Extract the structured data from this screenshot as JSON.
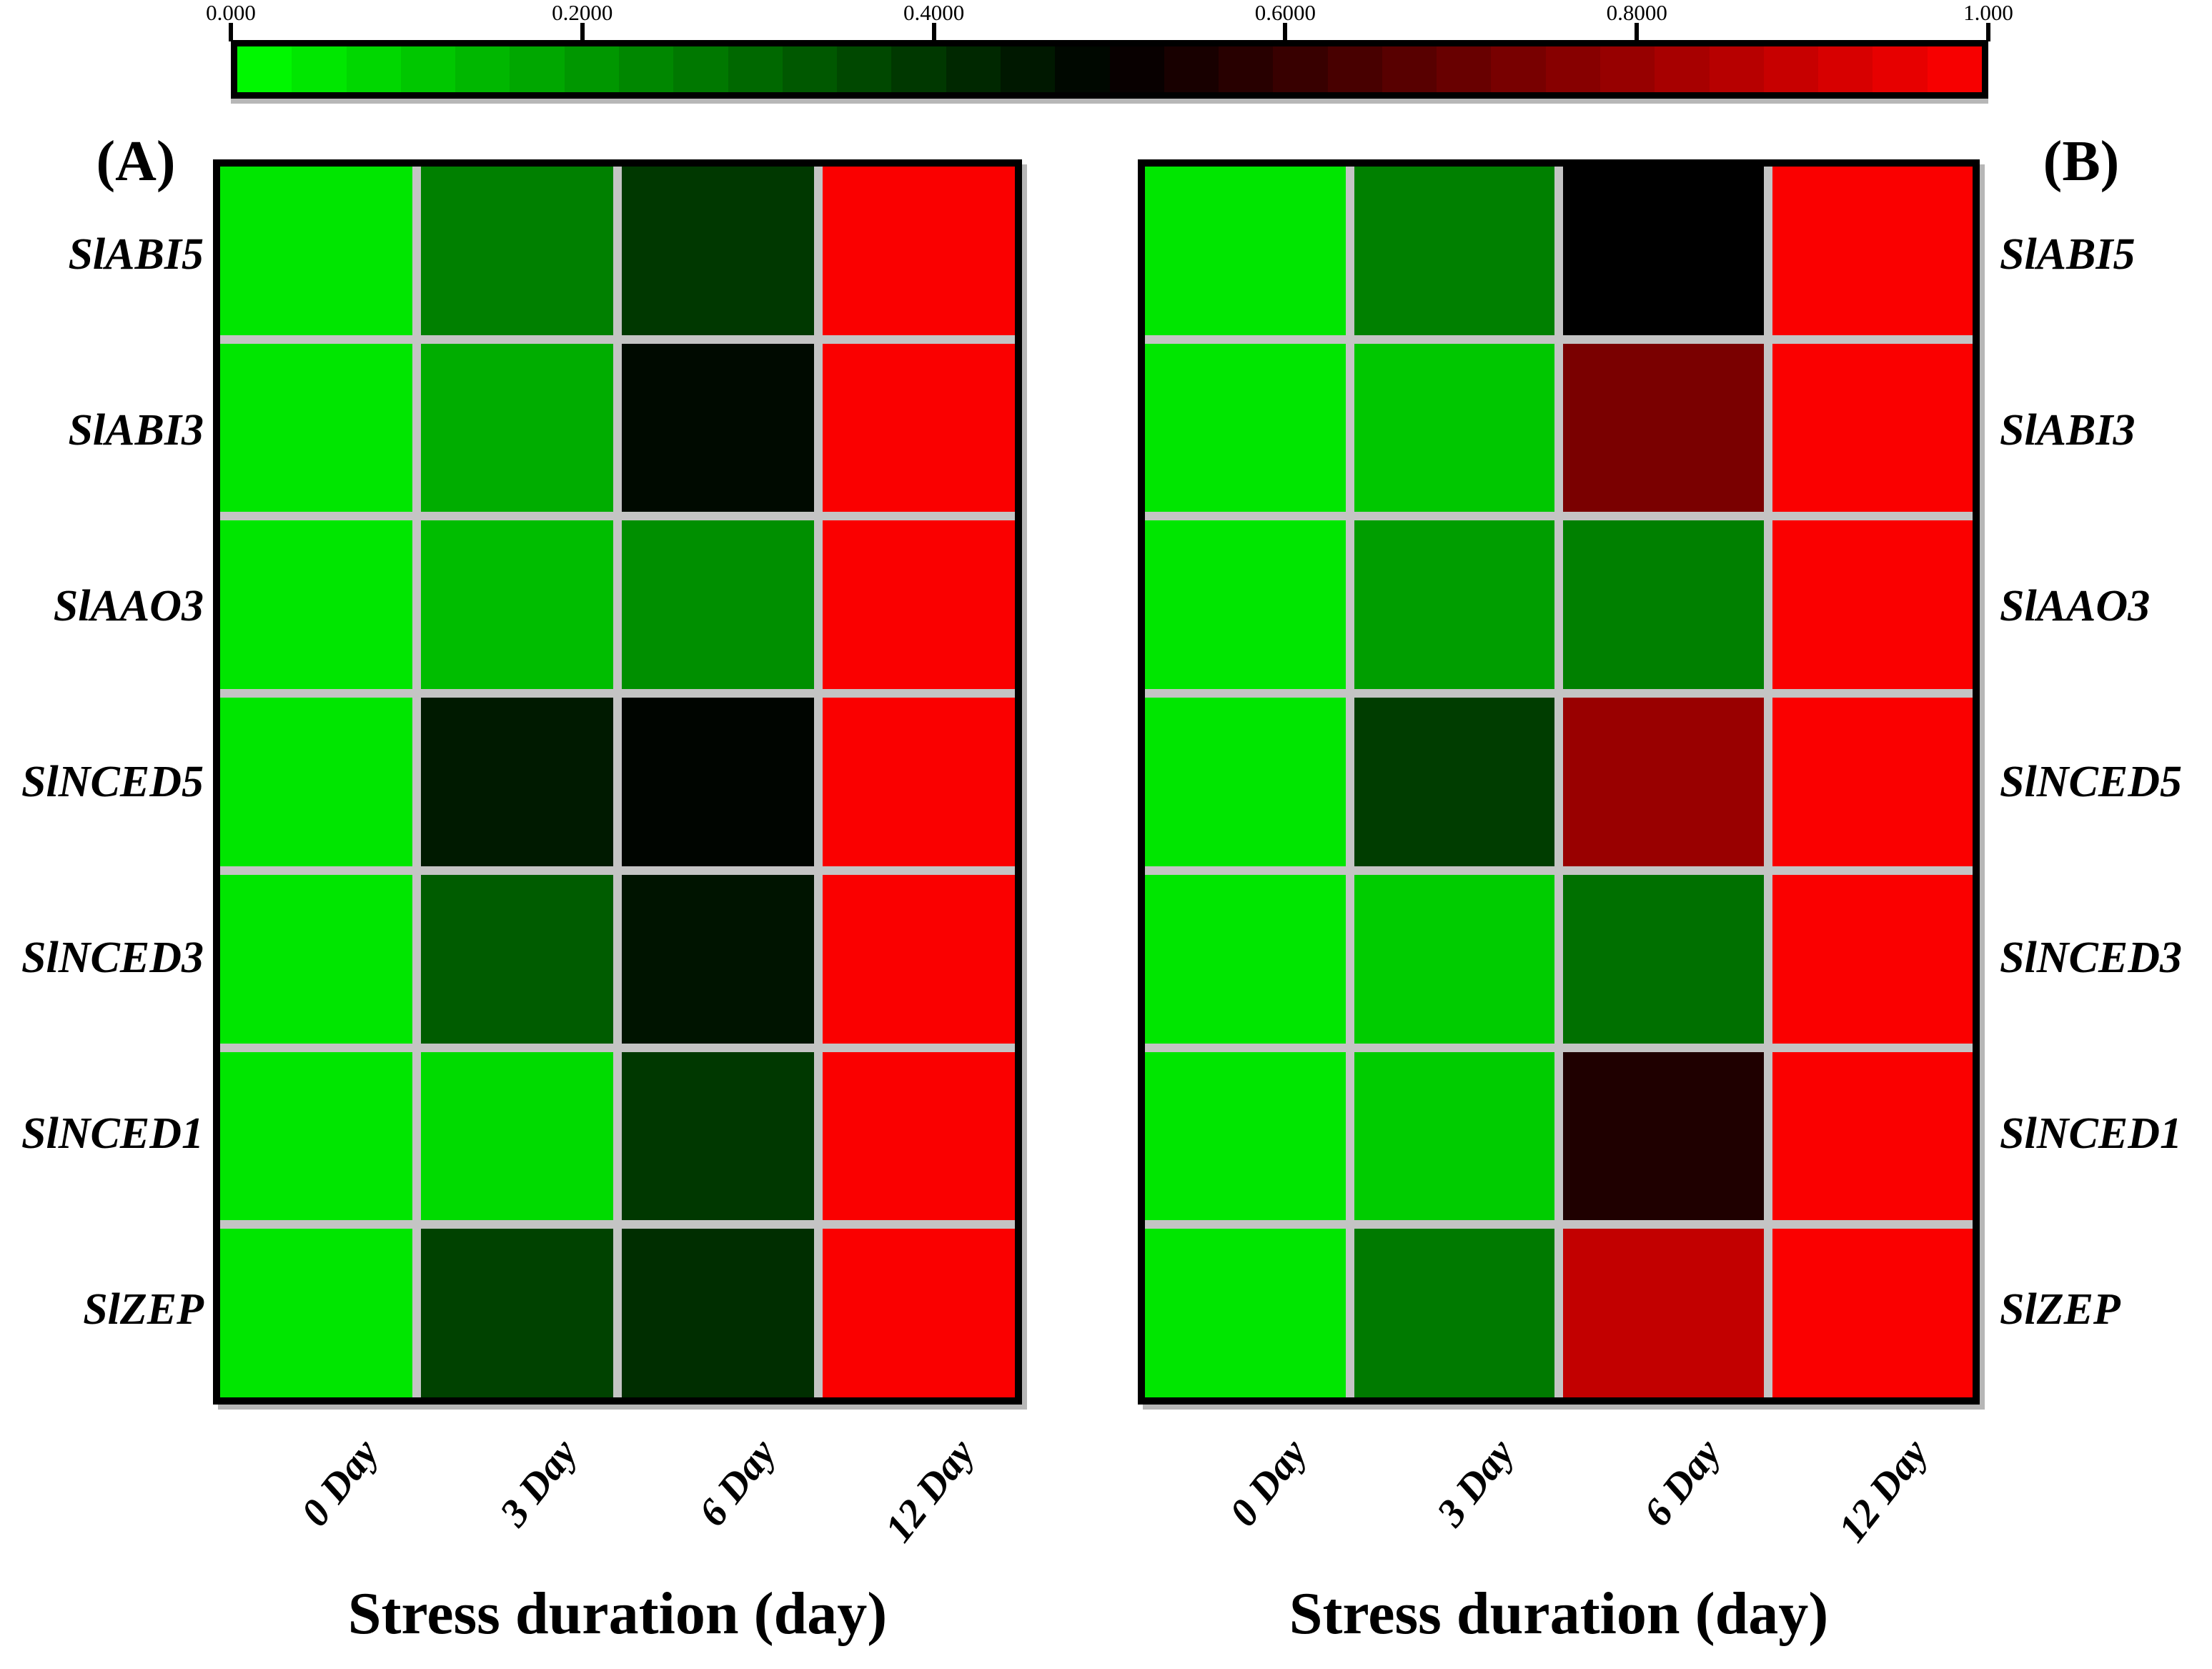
{
  "colorbar": {
    "tick_labels": [
      "0.000",
      "0.2000",
      "0.4000",
      "0.6000",
      "0.8000",
      "1.000"
    ],
    "tick_positions": [
      0,
      0.2,
      0.4,
      0.6,
      0.8,
      1.0
    ],
    "n_segments": 32
  },
  "chart_data": {
    "type": "heatmap",
    "colormap": {
      "low": "#00FF00",
      "mid": "#000000",
      "high": "#FF0000"
    },
    "value_range": [
      0,
      1
    ],
    "legend_position": "top",
    "cell_gap_color": "#c4c4c4",
    "panel_border_color": "#000000",
    "rows": [
      "SlABI5",
      "SlABI3",
      "SlAAO3",
      "SlNCED5",
      "SlNCED3",
      "SlNCED1",
      "SlZEP"
    ],
    "columns": [
      "0 Day",
      "3 Day",
      "6 Day",
      "12 Day"
    ],
    "panels": [
      {
        "label": "(A)",
        "xlabel": "Stress duration (day)",
        "row_label_side": "left",
        "values": [
          [
            0.05,
            0.25,
            0.39,
            0.99
          ],
          [
            0.05,
            0.16,
            0.48,
            0.99
          ],
          [
            0.05,
            0.13,
            0.22,
            0.99
          ],
          [
            0.05,
            0.45,
            0.49,
            0.99
          ],
          [
            0.05,
            0.32,
            0.46,
            0.99
          ],
          [
            0.05,
            0.07,
            0.39,
            0.99
          ],
          [
            0.05,
            0.37,
            0.41,
            0.99
          ]
        ]
      },
      {
        "label": "(B)",
        "xlabel": "Stress duration (day)",
        "row_label_side": "right",
        "values": [
          [
            0.05,
            0.25,
            0.5,
            0.99
          ],
          [
            0.05,
            0.11,
            0.74,
            0.99
          ],
          [
            0.05,
            0.19,
            0.25,
            0.99
          ],
          [
            0.05,
            0.38,
            0.8,
            0.99
          ],
          [
            0.05,
            0.1,
            0.28,
            0.99
          ],
          [
            0.05,
            0.1,
            0.56,
            0.99
          ],
          [
            0.05,
            0.26,
            0.88,
            0.99
          ]
        ]
      }
    ]
  }
}
